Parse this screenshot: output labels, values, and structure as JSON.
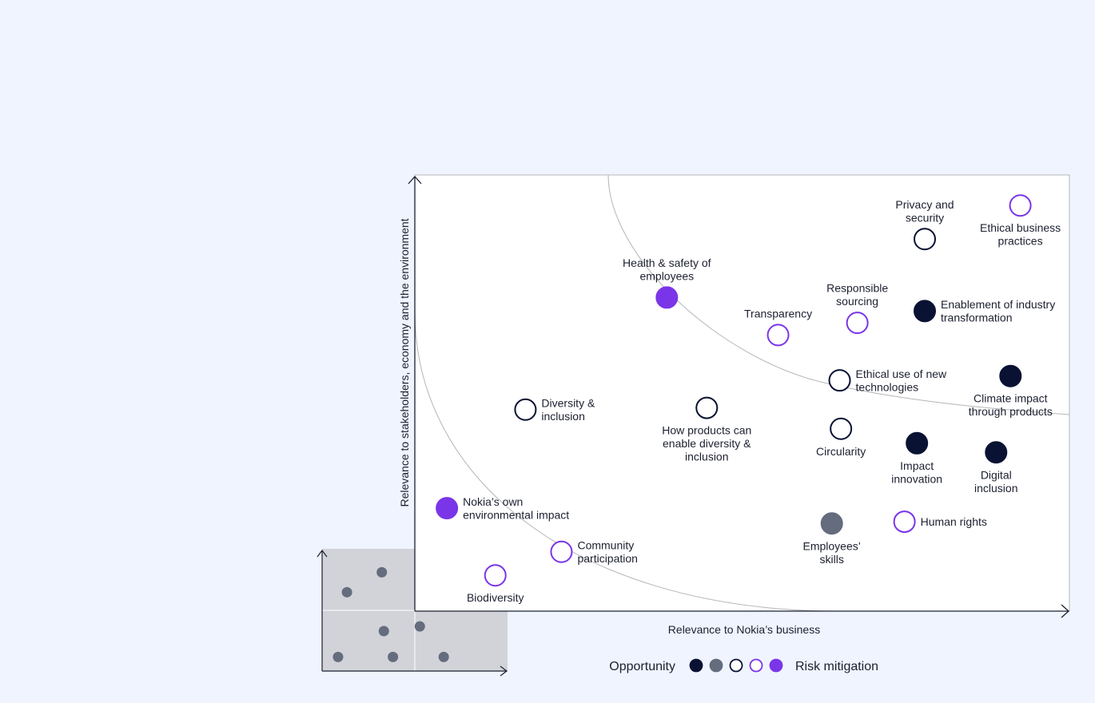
{
  "chart_data": {
    "type": "scatter",
    "title": "",
    "xlabel": "Relevance to Nokia’s business",
    "ylabel": "Relevance to stakeholders, economy and the environment",
    "xlim": [
      0,
      100
    ],
    "ylim": [
      0,
      100
    ],
    "grid": false,
    "legend": {
      "left_label": "Opportunity",
      "right_label": "Risk mitigation",
      "swatches": [
        "dark-filled",
        "grey-filled",
        "dark-outline",
        "purple-outline",
        "purple-filled"
      ]
    },
    "categories": {
      "dark-filled": {
        "fill": "#0a1233",
        "stroke": "#0a1233"
      },
      "grey-filled": {
        "fill": "#646c7e",
        "stroke": "#646c7e"
      },
      "dark-outline": {
        "fill": "#ffffff",
        "stroke": "#0a1233"
      },
      "purple-outline": {
        "fill": "#ffffff",
        "stroke": "#7b35e8"
      },
      "purple-filled": {
        "fill": "#7b35e8",
        "stroke": "#7b35e8"
      }
    },
    "points": [
      {
        "name": "Privacy and security",
        "lines": [
          "Privacy and",
          "security"
        ],
        "x": 77.9,
        "y": 85.3,
        "category": "dark-outline",
        "label_pos": "above"
      },
      {
        "name": "Ethical business practices",
        "lines": [
          "Ethical business",
          "practices"
        ],
        "x": 92.5,
        "y": 93.0,
        "category": "purple-outline",
        "label_pos": "below"
      },
      {
        "name": "Health & safety of employees",
        "lines": [
          "Health & safety of",
          "employees"
        ],
        "x": 38.5,
        "y": 71.9,
        "category": "purple-filled",
        "label_pos": "above"
      },
      {
        "name": "Responsible sourcing",
        "lines": [
          "Responsible",
          "sourcing"
        ],
        "x": 67.6,
        "y": 66.1,
        "category": "purple-outline",
        "label_pos": "above"
      },
      {
        "name": "Transparency",
        "lines": [
          "Transparency"
        ],
        "x": 55.5,
        "y": 63.3,
        "category": "purple-outline",
        "label_pos": "above"
      },
      {
        "name": "Enablement of industry transformation",
        "lines": [
          "Enablement of industry",
          "transformation"
        ],
        "x": 77.9,
        "y": 68.8,
        "category": "dark-filled",
        "label_pos": "right"
      },
      {
        "name": "Ethical use of new technologies",
        "lines": [
          "Ethical use of new",
          "technologies"
        ],
        "x": 64.9,
        "y": 52.9,
        "category": "dark-outline",
        "label_pos": "right"
      },
      {
        "name": "Climate impact through products",
        "lines": [
          "Climate impact",
          "through products"
        ],
        "x": 91.0,
        "y": 53.9,
        "category": "dark-filled",
        "label_pos": "below"
      },
      {
        "name": "Diversity & inclusion",
        "lines": [
          "Diversity &",
          "inclusion"
        ],
        "x": 16.9,
        "y": 46.2,
        "category": "dark-outline",
        "label_pos": "right"
      },
      {
        "name": "How products can enable diversity & inclusion",
        "lines": [
          "How products can",
          "enable diversity &",
          "inclusion"
        ],
        "x": 44.6,
        "y": 46.6,
        "category": "dark-outline",
        "label_pos": "below"
      },
      {
        "name": "Circularity",
        "lines": [
          "Circularity"
        ],
        "x": 65.1,
        "y": 41.8,
        "category": "dark-outline",
        "label_pos": "below"
      },
      {
        "name": "Impact innovation",
        "lines": [
          "Impact",
          "innovation"
        ],
        "x": 76.7,
        "y": 38.5,
        "category": "dark-filled",
        "label_pos": "below"
      },
      {
        "name": "Digital inclusion",
        "lines": [
          "Digital",
          "inclusion"
        ],
        "x": 88.8,
        "y": 36.4,
        "category": "dark-filled",
        "label_pos": "below"
      },
      {
        "name": "Nokia’s own environmental impact",
        "lines": [
          "Nokia’s own",
          "environmental impact"
        ],
        "x": 4.9,
        "y": 23.6,
        "category": "purple-filled",
        "label_pos": "right"
      },
      {
        "name": "Employees’ skills",
        "lines": [
          "Employees’",
          "skills"
        ],
        "x": 63.7,
        "y": 20.1,
        "category": "grey-filled",
        "label_pos": "below"
      },
      {
        "name": "Human rights",
        "lines": [
          "Human rights"
        ],
        "x": 74.8,
        "y": 20.5,
        "category": "purple-outline",
        "label_pos": "right"
      },
      {
        "name": "Community participation",
        "lines": [
          "Community",
          "participation"
        ],
        "x": 22.4,
        "y": 13.6,
        "category": "purple-outline",
        "label_pos": "right"
      },
      {
        "name": "Biodiversity",
        "lines": [
          "Biodiversity"
        ],
        "x": 12.3,
        "y": 8.2,
        "category": "purple-outline",
        "label_pos": "below"
      }
    ],
    "inset": {
      "points": [
        {
          "x": 13.4,
          "y": 64.5
        },
        {
          "x": 32.2,
          "y": 80.8
        },
        {
          "x": 33.3,
          "y": 32.7
        },
        {
          "x": 52.7,
          "y": 36.5
        },
        {
          "x": 8.6,
          "y": 11.5
        },
        {
          "x": 38.2,
          "y": 11.5
        },
        {
          "x": 65.6,
          "y": 11.5
        }
      ]
    }
  }
}
